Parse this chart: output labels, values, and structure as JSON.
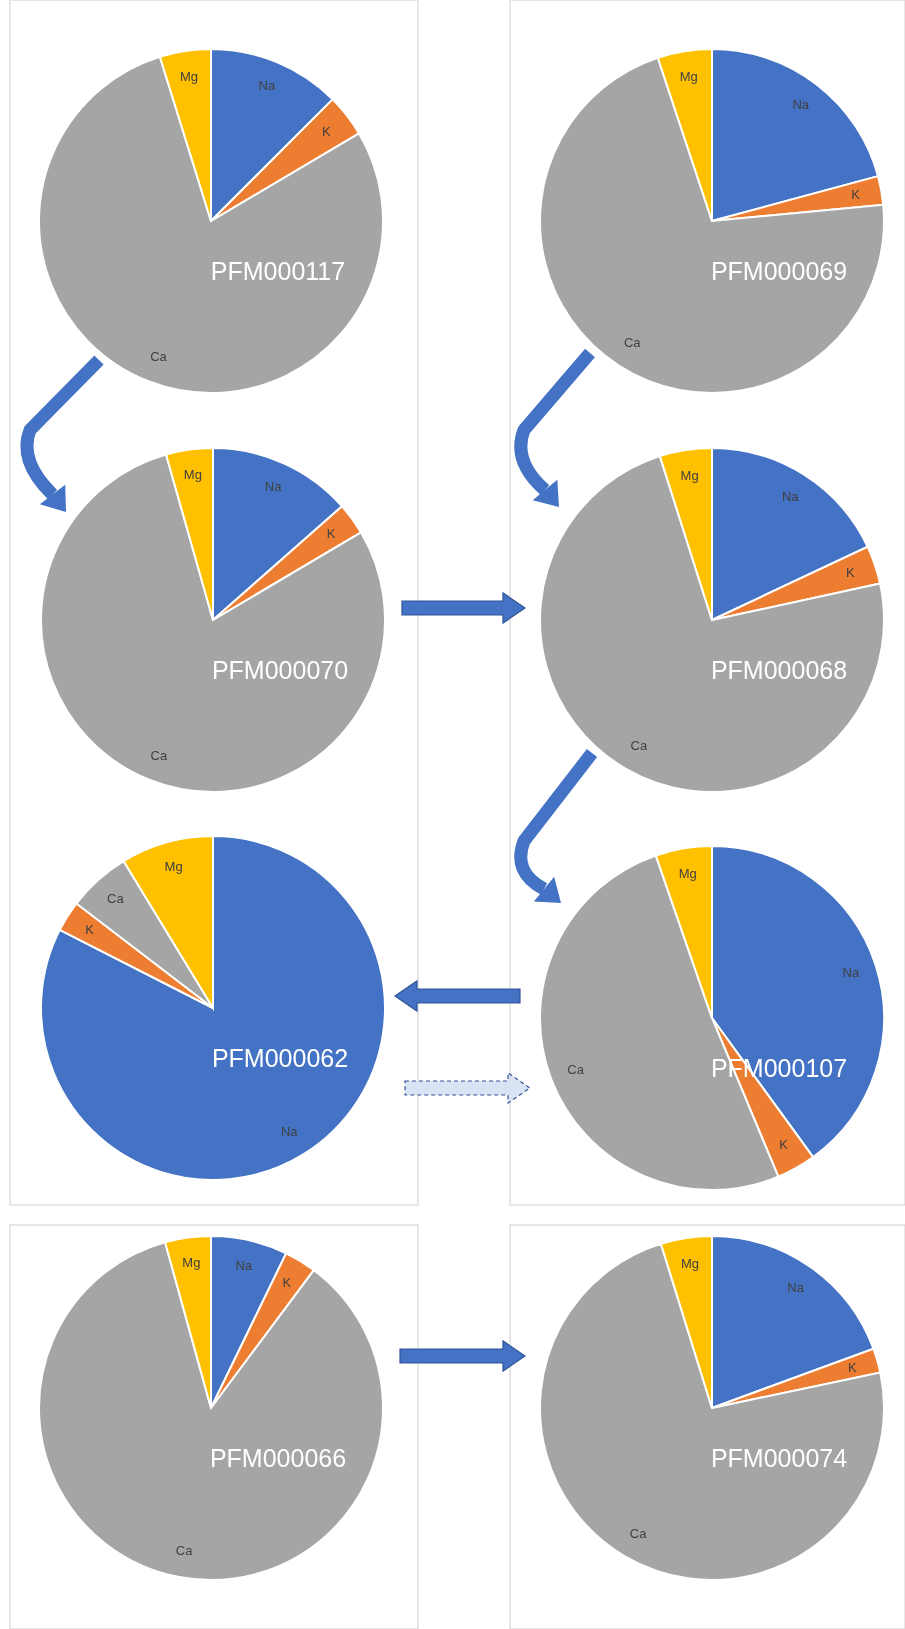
{
  "chart_data": [
    {
      "type": "pie",
      "title": "PFM000117",
      "categories": [
        "Na",
        "K",
        "Ca",
        "Mg"
      ],
      "values": [
        12.5,
        4,
        78.7,
        4.8
      ],
      "colors": [
        "#4472c4",
        "#ed7d31",
        "#a5a5a5",
        "#ffc000"
      ]
    },
    {
      "type": "pie",
      "title": "PFM000069",
      "categories": [
        "Na",
        "K",
        "Ca",
        "Mg"
      ],
      "values": [
        20.8,
        2.7,
        71.4,
        5.1
      ],
      "colors": [
        "#4472c4",
        "#ed7d31",
        "#a5a5a5",
        "#ffc000"
      ]
    },
    {
      "type": "pie",
      "title": "PFM000070",
      "categories": [
        "Na",
        "K",
        "Ca",
        "Mg"
      ],
      "values": [
        13.5,
        3,
        79.1,
        4.4
      ],
      "colors": [
        "#4472c4",
        "#ed7d31",
        "#a5a5a5",
        "#ffc000"
      ]
    },
    {
      "type": "pie",
      "title": "PFM000068",
      "categories": [
        "Na",
        "K",
        "Ca",
        "Mg"
      ],
      "values": [
        18,
        3.6,
        73.5,
        4.9
      ],
      "colors": [
        "#4472c4",
        "#ed7d31",
        "#a5a5a5",
        "#ffc000"
      ]
    },
    {
      "type": "pie",
      "title": "PFM000062",
      "categories": [
        "Na",
        "K",
        "Ca",
        "Mg"
      ],
      "values": [
        82.5,
        2.9,
        5.9,
        8.7
      ],
      "colors": [
        "#4472c4",
        "#ed7d31",
        "#a5a5a5",
        "#ffc000"
      ]
    },
    {
      "type": "pie",
      "title": "PFM000107",
      "categories": [
        "Na",
        "K",
        "Ca",
        "Mg"
      ],
      "values": [
        40,
        3.7,
        51,
        5.3
      ],
      "colors": [
        "#4472c4",
        "#ed7d31",
        "#a5a5a5",
        "#ffc000"
      ]
    },
    {
      "type": "pie",
      "title": "PFM000066",
      "categories": [
        "Na",
        "K",
        "Ca",
        "Mg"
      ],
      "values": [
        7.2,
        3,
        85.5,
        4.3
      ],
      "colors": [
        "#4472c4",
        "#ed7d31",
        "#a5a5a5",
        "#ffc000"
      ]
    },
    {
      "type": "pie",
      "title": "PFM000074",
      "categories": [
        "Na",
        "K",
        "Ca",
        "Mg"
      ],
      "values": [
        19.4,
        2.3,
        73.5,
        4.8
      ],
      "colors": [
        "#4472c4",
        "#ed7d31",
        "#a5a5a5",
        "#ffc000"
      ]
    }
  ]
}
